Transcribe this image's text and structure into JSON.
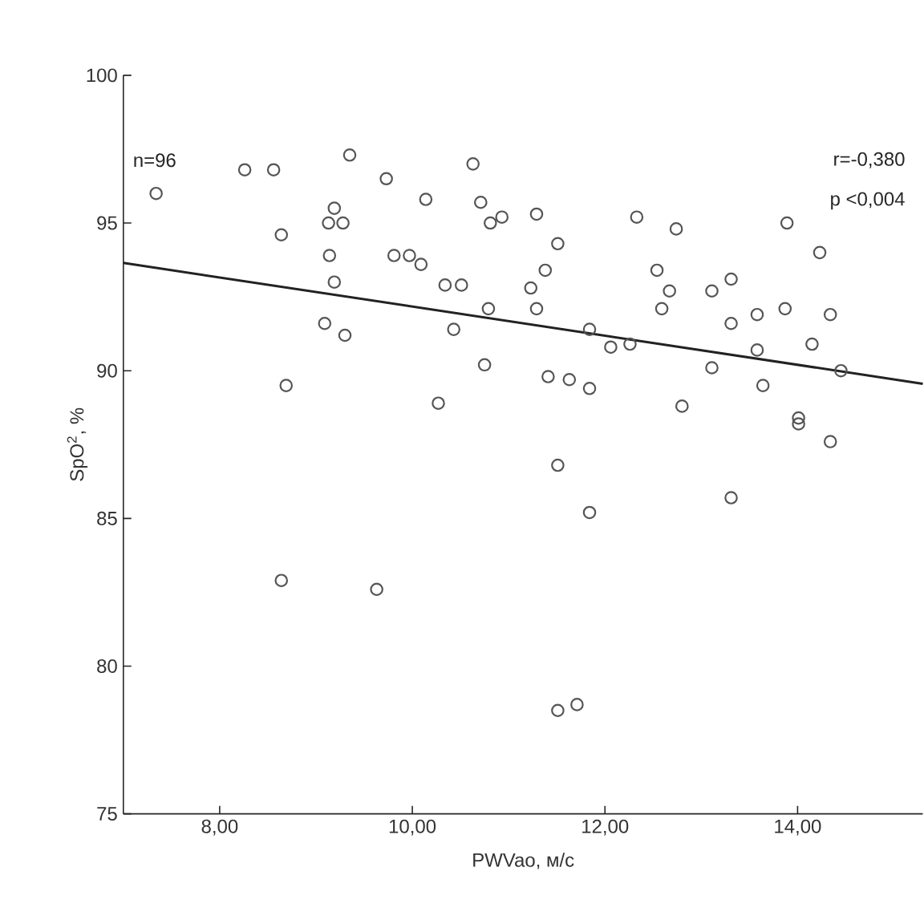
{
  "chart_data": {
    "type": "scatter",
    "xlabel": "PWVao, м/с",
    "ylabel": "SpO$^{2}$, %",
    "annotations": [
      "n=96",
      "r=-0,380",
      "p <0,004"
    ],
    "xlim": [
      7.0,
      15.3
    ],
    "ylim": [
      75,
      100
    ],
    "xticks": [
      {
        "value": 8,
        "label": "8,00"
      },
      {
        "value": 10,
        "label": "10,00"
      },
      {
        "value": 12,
        "label": "12,00"
      },
      {
        "value": 14,
        "label": "14,00"
      }
    ],
    "yticks": [
      75,
      80,
      85,
      90,
      95,
      100
    ],
    "grid": false,
    "series": [
      {
        "color": "#555555",
        "marker": "circle",
        "x": [
          7.34,
          8.26,
          8.56,
          9.35,
          9.73,
          10.63,
          10.14,
          10.71,
          10.81,
          10.93,
          9.19,
          9.13,
          9.28,
          8.64,
          9.14,
          9.81,
          9.97,
          10.09,
          9.19,
          10.34,
          10.51,
          10.79,
          9.09,
          9.3,
          10.43,
          10.75,
          8.69,
          10.27,
          11.29,
          11.51,
          11.38,
          11.23,
          11.29,
          12.33,
          12.74,
          13.89,
          14.23,
          12.54,
          12.67,
          12.59,
          13.11,
          13.31,
          13.31,
          13.58,
          13.87,
          14.34,
          11.84,
          12.06,
          12.26,
          13.58,
          14.15,
          14.45,
          13.11,
          11.41,
          11.63,
          11.84,
          13.64,
          12.8,
          14.01,
          14.01,
          14.34,
          8.64,
          9.63,
          11.51,
          11.84,
          13.31,
          11.51,
          11.71
        ],
        "values": [
          96.0,
          96.8,
          96.8,
          97.3,
          96.5,
          97.0,
          95.8,
          95.7,
          95.0,
          95.2,
          95.5,
          95.0,
          95.0,
          94.6,
          93.9,
          93.9,
          93.9,
          93.6,
          93.0,
          92.9,
          92.9,
          92.1,
          91.6,
          91.2,
          91.4,
          90.2,
          89.5,
          88.9,
          95.3,
          94.3,
          93.4,
          92.8,
          92.1,
          95.2,
          94.8,
          95.0,
          94.0,
          93.4,
          92.7,
          92.1,
          92.7,
          93.1,
          91.6,
          91.9,
          92.1,
          91.9,
          91.4,
          90.8,
          90.9,
          90.7,
          90.9,
          90.0,
          90.1,
          89.8,
          89.7,
          89.4,
          89.5,
          88.8,
          88.4,
          88.2,
          87.6,
          82.9,
          82.6,
          86.8,
          85.2,
          85.7,
          78.5,
          78.7
        ]
      },
      {
        "type": "line",
        "color": "#222222",
        "x": [
          7.0,
          15.3
        ],
        "values": [
          93.65,
          89.56
        ]
      }
    ]
  }
}
